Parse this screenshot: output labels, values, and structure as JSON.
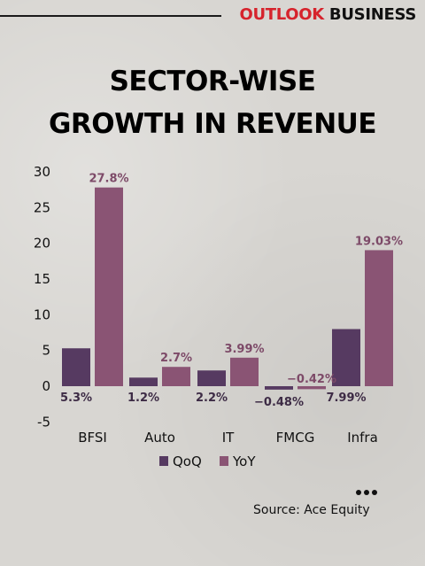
{
  "brand": {
    "part1": "OUTLOOK",
    "part2": "BUSINESS"
  },
  "title_line1": "SECTOR-WISE",
  "title_line2": "GROWTH IN REVENUE",
  "source": "Source: Ace Equity",
  "chart_data": {
    "type": "bar",
    "categories": [
      "BFSI",
      "Auto",
      "IT",
      "FMCG",
      "Infra"
    ],
    "series": [
      {
        "name": "QoQ",
        "color": "#563a61",
        "values": [
          5.3,
          1.2,
          2.2,
          -0.48,
          7.99
        ],
        "labels": [
          "5.3%",
          "1.2%",
          "2.2%",
          "-0.48%",
          "7.99%"
        ]
      },
      {
        "name": "YoY",
        "color": "#8a5474",
        "values": [
          27.8,
          2.7,
          3.99,
          -0.42,
          19.03
        ],
        "labels": [
          "27.8%",
          "2.7%",
          "3.99%",
          "-0.42%",
          "19.03%"
        ]
      }
    ],
    "ylim": [
      -5,
      30
    ],
    "yticks": [
      -5,
      0,
      5,
      10,
      15,
      20,
      25,
      30
    ],
    "grid": false,
    "legend": "bottom",
    "label_colors": {
      "QoQ": "#3d2b45",
      "YoY": "#7d4a68"
    }
  }
}
